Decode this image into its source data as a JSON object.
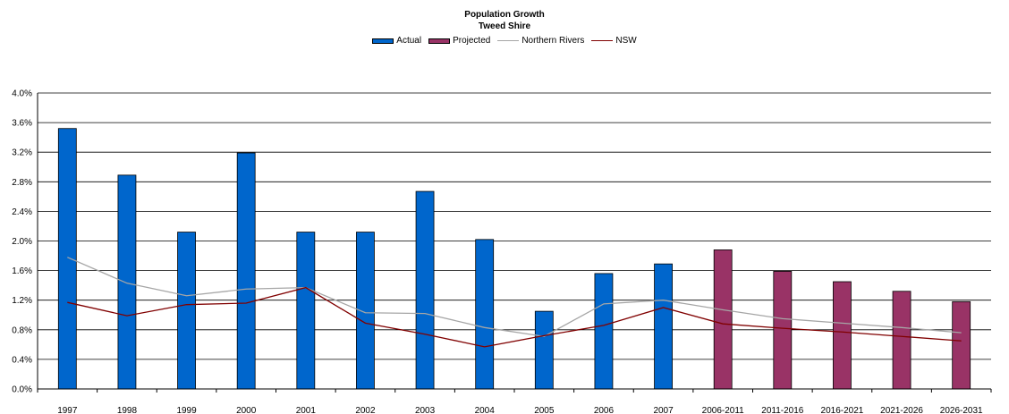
{
  "title": {
    "line1": "Population Growth",
    "line2": "Tweed Shire"
  },
  "chart_data": {
    "type": "bar",
    "categories": [
      "1997",
      "1998",
      "1999",
      "2000",
      "2001",
      "2002",
      "2003",
      "2004",
      "2005",
      "2006",
      "2007",
      "2006-2011",
      "2011-2016",
      "2016-2021",
      "2021-2026",
      "2026-2031"
    ],
    "ylim": [
      0,
      4.0
    ],
    "yticks": [
      "0.0%",
      "0.4%",
      "0.8%",
      "1.2%",
      "1.6%",
      "2.0%",
      "2.4%",
      "2.8%",
      "3.2%",
      "3.6%",
      "4.0%"
    ],
    "grid": true,
    "legend_position": "top",
    "series": [
      {
        "name": "Actual",
        "type": "bar",
        "color": "#0066cc",
        "values": [
          3.52,
          2.89,
          2.12,
          3.19,
          2.12,
          2.12,
          2.67,
          2.02,
          1.05,
          1.56,
          1.69,
          null,
          null,
          null,
          null,
          null
        ]
      },
      {
        "name": "Projected",
        "type": "bar",
        "color": "#993366",
        "values": [
          null,
          null,
          null,
          null,
          null,
          null,
          null,
          null,
          null,
          null,
          null,
          1.88,
          1.59,
          1.45,
          1.32,
          1.18
        ]
      },
      {
        "name": "Northern Rivers",
        "type": "line",
        "color": "#a6a6a6",
        "values": [
          1.78,
          1.43,
          1.26,
          1.35,
          1.37,
          1.03,
          1.02,
          0.83,
          0.71,
          1.15,
          1.2,
          1.07,
          0.95,
          0.89,
          0.83,
          0.76
        ]
      },
      {
        "name": "NSW",
        "type": "line",
        "color": "#800000",
        "values": [
          1.17,
          0.99,
          1.14,
          1.16,
          1.37,
          0.89,
          0.74,
          0.57,
          0.72,
          0.86,
          1.1,
          0.88,
          0.82,
          0.77,
          0.71,
          0.65
        ]
      }
    ]
  }
}
